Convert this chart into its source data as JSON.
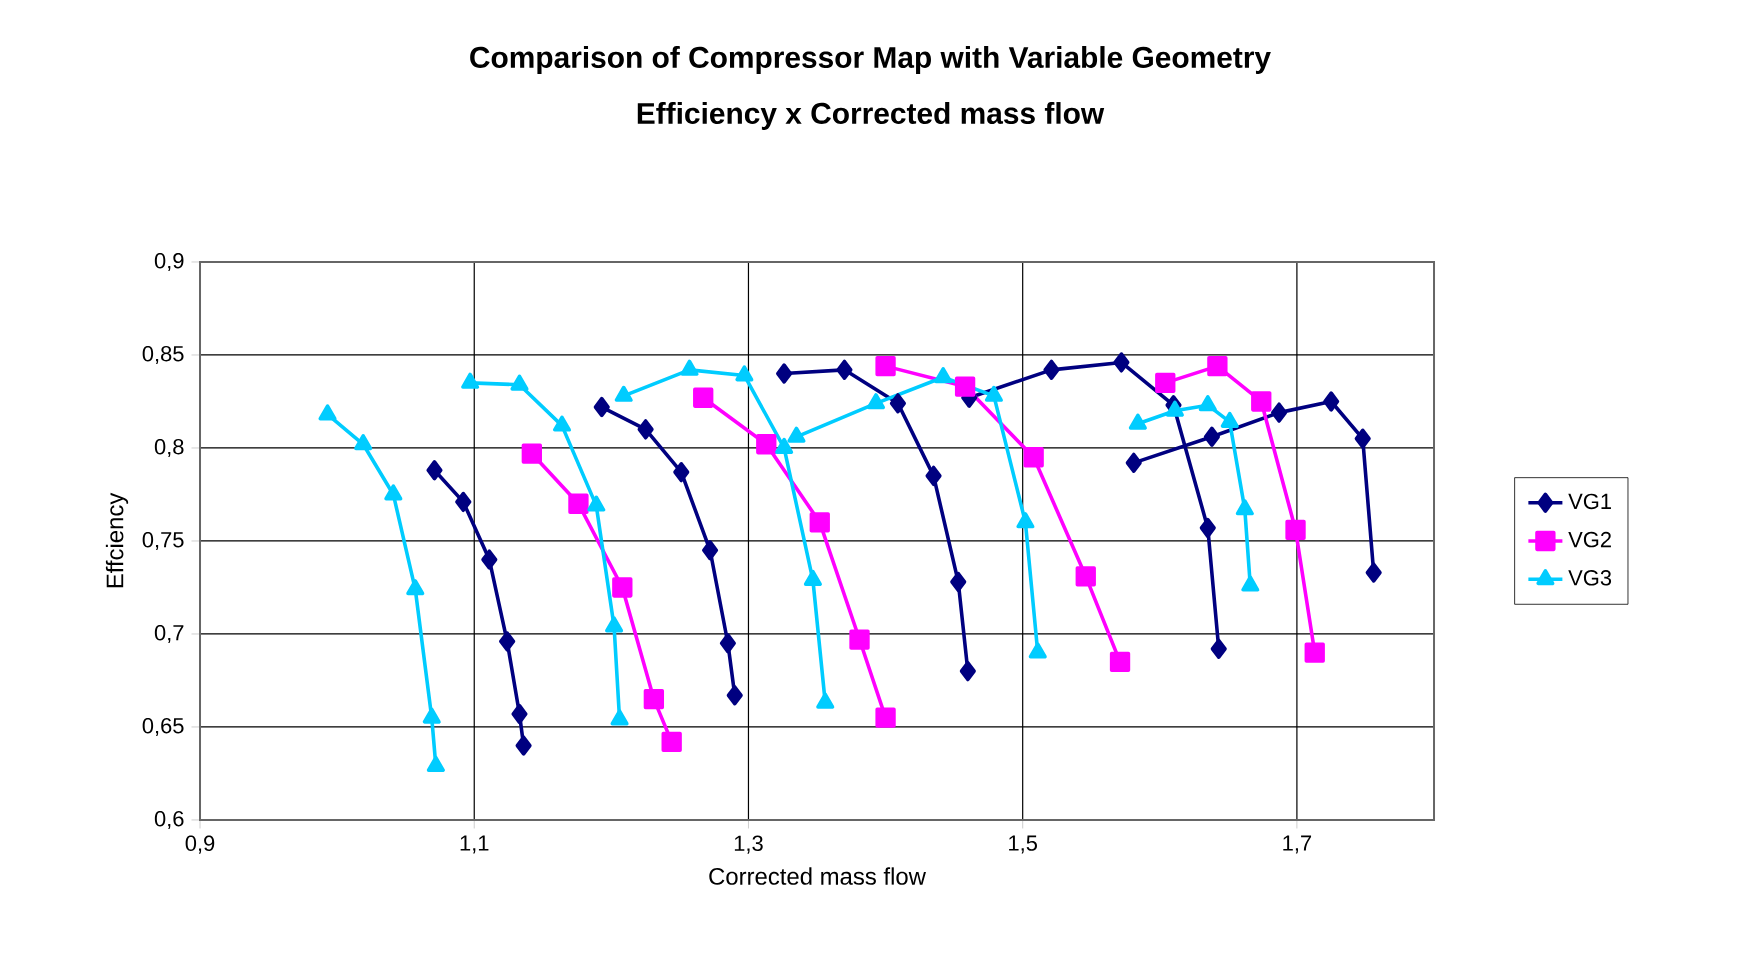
{
  "chart_data": {
    "type": "line",
    "title": "Comparison of Compressor Map with Variable Geometry",
    "subtitle": "Efficiency x Corrected mass flow",
    "xlabel": "Corrected mass flow",
    "ylabel": "Effciency",
    "xlim": [
      0.9,
      1.8
    ],
    "ylim": [
      0.6,
      0.9
    ],
    "xticks": [
      {
        "value": 0.9,
        "label": "0,9"
      },
      {
        "value": 1.1,
        "label": "1,1"
      },
      {
        "value": 1.3,
        "label": "1,3"
      },
      {
        "value": 1.5,
        "label": "1,5"
      },
      {
        "value": 1.7,
        "label": "1,7"
      }
    ],
    "yticks": [
      {
        "value": 0.6,
        "label": "0,6"
      },
      {
        "value": 0.65,
        "label": "0,65"
      },
      {
        "value": 0.7,
        "label": "0,7"
      },
      {
        "value": 0.75,
        "label": "0,75"
      },
      {
        "value": 0.8,
        "label": "0,8"
      },
      {
        "value": 0.85,
        "label": "0,85"
      },
      {
        "value": 0.9,
        "label": "0,9"
      }
    ],
    "grid": true,
    "legend": "right",
    "line_style": "solid",
    "series": [
      {
        "name": "VG1",
        "color": "#000080",
        "marker": "diamond",
        "x": [
          1.071,
          1.092,
          1.111,
          1.124,
          1.133,
          1.136,
          null,
          1.193,
          1.225,
          1.251,
          1.272,
          1.285,
          1.29,
          null,
          1.326,
          1.37,
          1.409,
          1.435,
          1.453,
          1.46,
          null,
          1.461,
          1.521,
          1.572,
          1.61,
          1.635,
          1.643,
          null,
          1.581,
          1.638,
          1.687,
          1.725,
          1.748,
          1.756
        ],
        "values": [
          0.788,
          0.771,
          0.74,
          0.696,
          0.657,
          0.64,
          null,
          0.822,
          0.81,
          0.787,
          0.745,
          0.695,
          0.667,
          null,
          0.84,
          0.842,
          0.824,
          0.785,
          0.728,
          0.68,
          null,
          0.827,
          0.842,
          0.846,
          0.823,
          0.757,
          0.692,
          null,
          0.792,
          0.806,
          0.819,
          0.825,
          0.805,
          0.733
        ]
      },
      {
        "name": "VG2",
        "color": "#ff00ff",
        "marker": "square",
        "x": [
          1.142,
          1.176,
          1.208,
          1.231,
          1.244,
          null,
          1.267,
          1.313,
          1.352,
          1.381,
          1.4,
          null,
          1.4,
          1.458,
          1.508,
          1.546,
          1.571,
          null,
          1.604,
          1.642,
          1.674,
          1.699,
          1.713
        ],
        "values": [
          0.797,
          0.77,
          0.725,
          0.665,
          0.642,
          null,
          0.827,
          0.802,
          0.76,
          0.697,
          0.655,
          null,
          0.844,
          0.833,
          0.795,
          0.731,
          0.685,
          null,
          0.835,
          0.844,
          0.825,
          0.756,
          0.69
        ]
      },
      {
        "name": "VG3",
        "color": "#00ccff",
        "marker": "triangle",
        "x": [
          0.993,
          1.019,
          1.041,
          1.057,
          1.069,
          1.072,
          null,
          1.097,
          1.133,
          1.164,
          1.189,
          1.202,
          1.206,
          null,
          1.209,
          1.257,
          1.297,
          1.326,
          1.347,
          1.356,
          null,
          1.335,
          1.393,
          1.442,
          1.479,
          1.502,
          1.511,
          null,
          1.584,
          1.611,
          1.635,
          1.651,
          1.662,
          1.666
        ],
        "values": [
          0.818,
          0.802,
          0.775,
          0.724,
          0.655,
          0.629,
          null,
          0.835,
          0.834,
          0.812,
          0.769,
          0.704,
          0.654,
          null,
          0.828,
          0.842,
          0.839,
          0.8,
          0.729,
          0.663,
          null,
          0.806,
          0.824,
          0.838,
          0.828,
          0.76,
          0.69,
          null,
          0.813,
          0.82,
          0.823,
          0.814,
          0.767,
          0.726
        ]
      }
    ]
  }
}
